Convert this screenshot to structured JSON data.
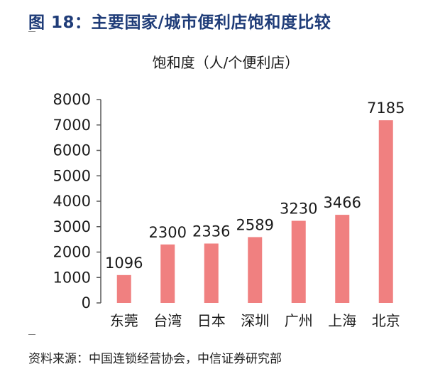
{
  "figure_title": "图 18：主要国家/城市便利店饱和度比较",
  "source_note": "资料来源：中国连锁经营协会，中信证券研究部",
  "chart_data": {
    "type": "bar",
    "title": "饱和度（人/个便利店）",
    "xlabel": "",
    "ylabel": "",
    "categories": [
      "东莞",
      "台湾",
      "日本",
      "深圳",
      "广州",
      "上海",
      "北京"
    ],
    "values": [
      1096,
      2300,
      2336,
      2589,
      3230,
      3466,
      7185
    ],
    "data_labels": [
      "1096",
      "2300",
      "2336",
      "2589",
      "3230",
      "3466",
      "7185"
    ],
    "ylim": [
      0,
      8000
    ],
    "yticks": [
      "0",
      "1000",
      "2000",
      "3000",
      "4000",
      "5000",
      "6000",
      "7000",
      "8000"
    ],
    "grid": false,
    "legend": "none",
    "bar_color": "#f08080",
    "axis_color": "#595959"
  }
}
